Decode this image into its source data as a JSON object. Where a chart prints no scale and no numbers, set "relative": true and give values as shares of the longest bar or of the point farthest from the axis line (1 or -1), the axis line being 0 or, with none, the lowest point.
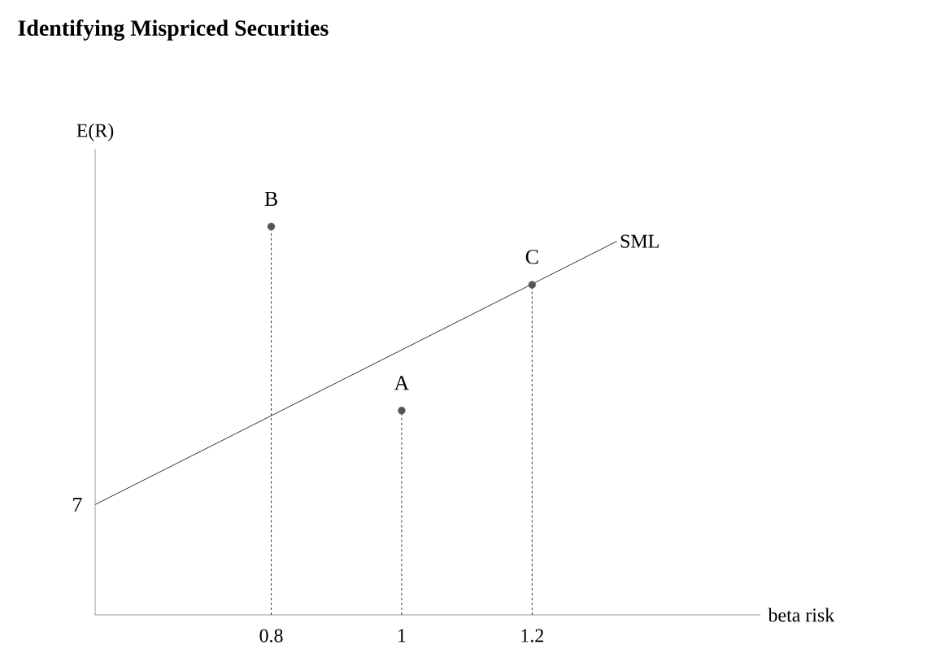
{
  "chart_data": {
    "type": "scatter",
    "title": "Identifying Mispriced Securities",
    "xlabel": "beta risk",
    "ylabel": "E(R)",
    "relative": true,
    "xlim": [
      0.53,
      1.55
    ],
    "xticks": [
      0.8,
      1,
      1.2
    ],
    "series": [
      {
        "name": "SML",
        "type": "line",
        "color": "#333333",
        "x": [
          0.53,
          1.33
        ],
        "values": [
          0.284,
          0.962
        ]
      },
      {
        "color": "#555555",
        "x": [
          1,
          0.8,
          1.2
        ],
        "values": [
          0.526,
          1,
          0.85
        ],
        "line_style": "dashed",
        "marker": "circle"
      }
    ],
    "annotations": [
      {
        "text": "7",
        "x": 0.53,
        "y": 0.284
      },
      {
        "text": "A",
        "x": 1,
        "y": 0.526
      },
      {
        "text": "B",
        "x": 0.8,
        "y": 1
      },
      {
        "text": "C",
        "x": 1.2,
        "y": 0.85
      }
    ]
  }
}
